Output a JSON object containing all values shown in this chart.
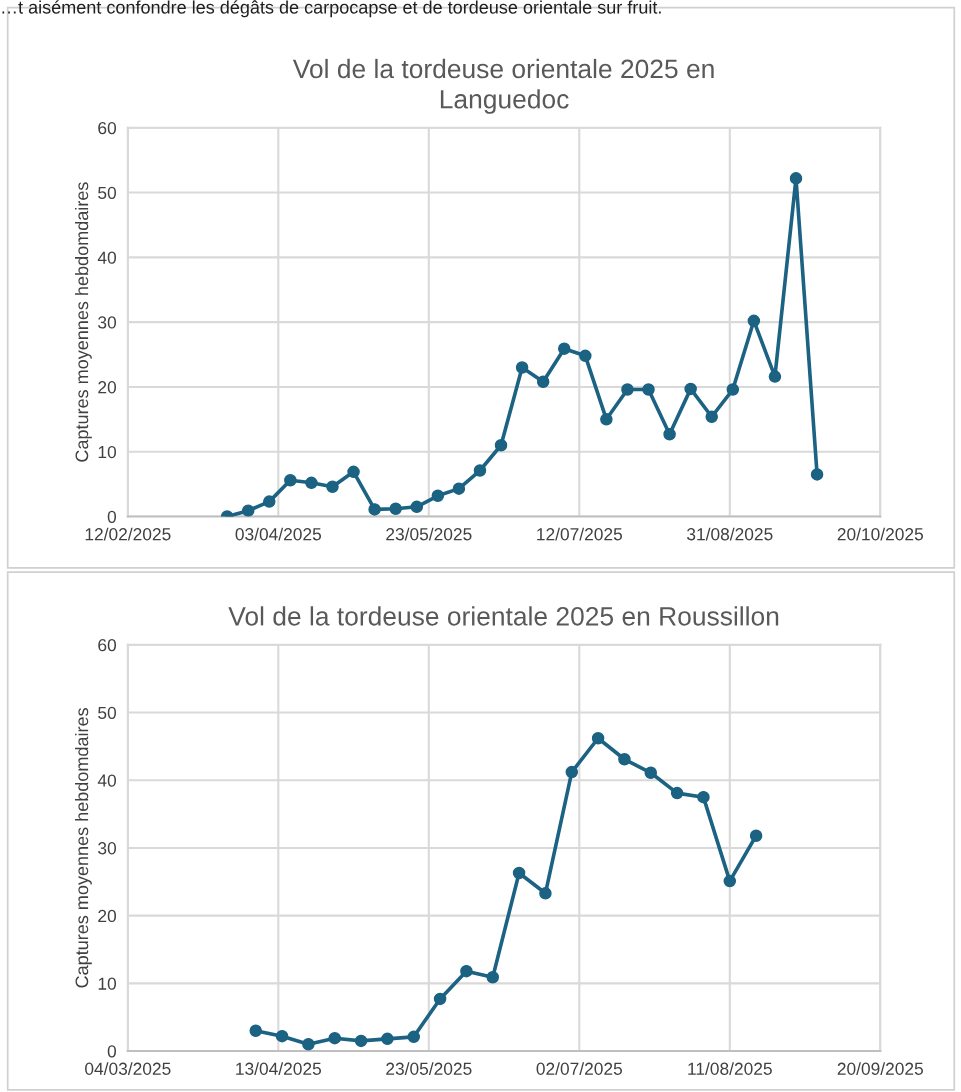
{
  "chart_data": [
    {
      "type": "line",
      "title": "Vol de la tordeuse orientale 2025 en\nLanguedoc",
      "ylabel": "Captures moyennes hebdomdaires",
      "annotations": [
        "…t aisément confondre les dégâts de carpocapse et de tordeuse orientale sur fruit."
      ],
      "x": [
        "2025-03-17",
        "2025-03-24",
        "2025-03-31",
        "2025-04-07",
        "2025-04-14",
        "2025-04-21",
        "2025-04-28",
        "2025-05-05",
        "2025-05-12",
        "2025-05-19",
        "2025-05-26",
        "2025-06-02",
        "2025-06-09",
        "2025-06-16",
        "2025-06-23",
        "2025-06-30",
        "2025-07-07",
        "2025-07-14",
        "2025-07-21",
        "2025-07-28",
        "2025-08-04",
        "2025-08-11",
        "2025-08-18",
        "2025-08-25",
        "2025-09-01",
        "2025-09-08",
        "2025-09-15",
        "2025-09-22",
        "2025-09-29"
      ],
      "series": [
        {
          "color": "#1b6283",
          "values": [
            0,
            0.9,
            2.3,
            5.6,
            5.2,
            4.6,
            6.9,
            1.1,
            1.2,
            1.5,
            3.2,
            4.3,
            7.1,
            11,
            23,
            20.8,
            25.9,
            24.8,
            15,
            19.6,
            19.6,
            12.7,
            19.7,
            15.4,
            19.6,
            30.2,
            21.6,
            52.2,
            6.5
          ]
        }
      ],
      "xlim": [
        "2025-02-12",
        "2025-10-20"
      ],
      "xticks": [
        {
          "value": "2025-02-12",
          "label": "12/02/2025"
        },
        {
          "value": "2025-04-03",
          "label": "03/04/2025"
        },
        {
          "value": "2025-05-23",
          "label": "23/05/2025"
        },
        {
          "value": "2025-07-12",
          "label": "12/07/2025"
        },
        {
          "value": "2025-08-31",
          "label": "31/08/2025"
        },
        {
          "value": "2025-10-20",
          "label": "20/10/2025"
        }
      ],
      "ylim": [
        0,
        60
      ],
      "yticks": [
        0,
        10,
        20,
        30,
        40,
        50,
        60
      ],
      "grid": true,
      "marker": "circle",
      "line_style": "solid",
      "legend": false
    },
    {
      "type": "line",
      "title": "Vol de la tordeuse orientale 2025 en Roussillon",
      "ylabel": "Captures moyennes hebdomdaires",
      "x": [
        "2025-04-07",
        "2025-04-14",
        "2025-04-21",
        "2025-04-28",
        "2025-05-05",
        "2025-05-12",
        "2025-05-19",
        "2025-05-26",
        "2025-06-02",
        "2025-06-09",
        "2025-06-16",
        "2025-06-23",
        "2025-06-30",
        "2025-07-07",
        "2025-07-14",
        "2025-07-21",
        "2025-07-28",
        "2025-08-04",
        "2025-08-11",
        "2025-08-18"
      ],
      "series": [
        {
          "color": "#1b6283",
          "values": [
            3.0,
            2.2,
            1.0,
            1.9,
            1.5,
            1.8,
            2.1,
            7.7,
            11.8,
            10.9,
            26.3,
            23.3,
            41.2,
            46.2,
            43.1,
            41.1,
            38.1,
            37.5,
            25.1,
            31.8
          ]
        }
      ],
      "xlim": [
        "2025-03-04",
        "2025-09-20"
      ],
      "xticks": [
        {
          "value": "2025-03-04",
          "label": "04/03/2025"
        },
        {
          "value": "2025-04-13",
          "label": "13/04/2025"
        },
        {
          "value": "2025-05-23",
          "label": "23/05/2025"
        },
        {
          "value": "2025-07-02",
          "label": "02/07/2025"
        },
        {
          "value": "2025-08-11",
          "label": "11/08/2025"
        },
        {
          "value": "2025-09-20",
          "label": "20/09/2025"
        }
      ],
      "ylim": [
        0,
        60
      ],
      "yticks": [
        0,
        10,
        20,
        30,
        40,
        50,
        60
      ],
      "grid": true,
      "marker": "circle",
      "line_style": "solid",
      "legend": false
    }
  ]
}
